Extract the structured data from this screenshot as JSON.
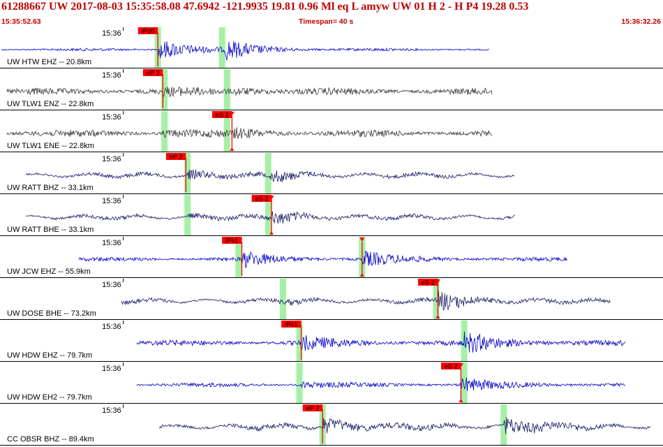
{
  "header": {
    "title": "61288667 UW 2017-08-03 15:35:58.08   47.6942 -121.9935  19.81  0.96 Ml  eq  L amyw     UW 01  H   2  -  H P4   19.28  0.53",
    "start_time": "15:35:52.63",
    "timespan": "Timespan=  40 s",
    "end_time": "15:36:32.26"
  },
  "colors": {
    "header_red": "#c00000",
    "pick_red": "#ff0000",
    "window_green": "#a6f0a6",
    "trace_blue": "#0000c8",
    "trace_gray": "#383838",
    "trace_navy": "#1a1a66"
  },
  "chart_data": {
    "type": "line",
    "title": "",
    "time_range_s": [
      0,
      40
    ],
    "minute_tick": {
      "label": "15:36",
      "t": 7.4
    },
    "traces": [
      {
        "label": "UW HTW EHZ -- 20.8km",
        "color": "blue",
        "start": 0,
        "end": 29.6,
        "amp": 2,
        "bursts": [
          [
            9.5,
            16
          ],
          [
            13.6,
            13
          ]
        ],
        "picks": [
          {
            "name": "iPd0",
            "t": 9.5,
            "type": "P"
          }
        ],
        "green": [
          9.5,
          13.4
        ]
      },
      {
        "label": "UW TLW1 ENZ -- 22.8km",
        "color": "gray",
        "start": 0.3,
        "end": 29.8,
        "amp": 5,
        "bursts": [
          [
            9.8,
            4
          ],
          [
            14.2,
            4
          ]
        ],
        "picks": [
          {
            "name": "eP 2",
            "t": 9.8,
            "type": "P"
          }
        ],
        "green": [
          9.9,
          13.7
        ]
      },
      {
        "label": "UW TLW1 ENE -- 22.8km",
        "color": "gray",
        "start": 0.3,
        "end": 29.8,
        "amp": 5,
        "bursts": [
          [
            9.8,
            4
          ],
          [
            14.1,
            4.5
          ]
        ],
        "picks": [
          {
            "name": "eS 2",
            "t": 14.0,
            "type": "S"
          }
        ],
        "green": [
          9.9,
          13.7
        ]
      },
      {
        "label": "UW RATT BHZ -- 33.1km",
        "color": "navy",
        "start": 1.5,
        "end": 31.2,
        "amp": 3,
        "bursts": [
          [
            11.3,
            7
          ],
          [
            16.3,
            7
          ]
        ],
        "picks": [
          {
            "name": "eP 2",
            "t": 11.2,
            "type": "P"
          }
        ],
        "green": [
          11.3,
          16.2
        ]
      },
      {
        "label": "UW RATT BHE -- 33.1km",
        "color": "navy",
        "start": 1.5,
        "end": 31.2,
        "amp": 3,
        "bursts": [
          [
            11.3,
            3
          ],
          [
            16.4,
            9
          ]
        ],
        "picks": [
          {
            "name": "eS 2",
            "t": 16.4,
            "type": "S"
          }
        ],
        "green": [
          11.3,
          16.2
        ]
      },
      {
        "label": "UW JCW EHZ -- 55.9km",
        "color": "blue",
        "start": 4.7,
        "end": 34.4,
        "amp": 3,
        "bursts": [
          [
            14.6,
            11
          ],
          [
            21.9,
            11
          ]
        ],
        "picks": [
          {
            "name": "iPs1",
            "t": 14.6,
            "type": "P"
          },
          {
            "name": "",
            "t": 21.9,
            "type": "S"
          }
        ],
        "green": [
          14.4,
          21.9
        ]
      },
      {
        "label": "UW DOSE BHE -- 73.2km",
        "color": "navy",
        "start": 7.3,
        "end": 37.0,
        "amp": 3,
        "bursts": [
          [
            17.3,
            2
          ],
          [
            26.5,
            13
          ]
        ],
        "picks": [
          {
            "name": "eS 2",
            "t": 26.5,
            "type": "S"
          }
        ],
        "green": [
          17.1,
          26.4
        ]
      },
      {
        "label": "UW HDW EHZ -- 79.7km",
        "color": "blue",
        "start": 8.2,
        "end": 37.9,
        "amp": 4,
        "bursts": [
          [
            18.2,
            9
          ],
          [
            28.1,
            14
          ]
        ],
        "picks": [
          {
            "name": "iPs1",
            "t": 18.2,
            "type": "P"
          }
        ],
        "green": [
          18.1,
          28.1
        ]
      },
      {
        "label": "UW HDW EH2 -- 79.7km",
        "color": "blue",
        "start": 8.2,
        "end": 37.9,
        "amp": 3,
        "bursts": [
          [
            18.2,
            4
          ],
          [
            27.9,
            10
          ]
        ],
        "picks": [
          {
            "name": "eS 2",
            "t": 27.9,
            "type": "S"
          }
        ],
        "green": [
          18.1,
          28.1
        ]
      },
      {
        "label": "CC OBSR BHZ -- 89.4km",
        "color": "navy",
        "start": 9.6,
        "end": 39.4,
        "amp": 4,
        "bursts": [
          [
            19.5,
            11
          ],
          [
            30.5,
            12
          ]
        ],
        "picks": [
          {
            "name": "eP 2",
            "t": 19.5,
            "type": "P"
          }
        ],
        "green": [
          19.5,
          30.5
        ]
      }
    ]
  }
}
